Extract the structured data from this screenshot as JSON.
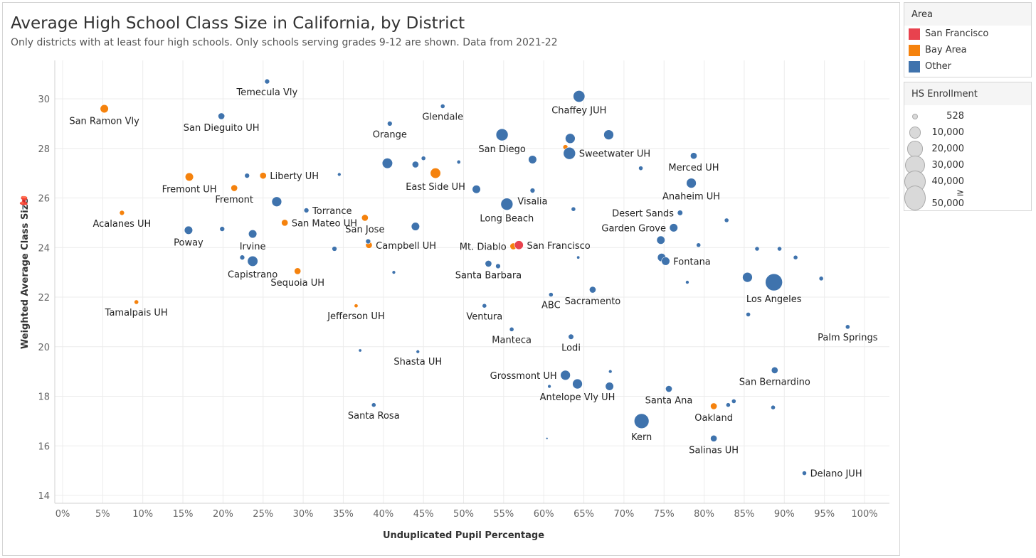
{
  "title": "Average High School Class Size in California, by District",
  "subtitle": "Only districts with at least four high schools. Only schools serving grades 9-12 are shown. Data from 2021-22",
  "legend_area": {
    "title": "Area",
    "items": [
      {
        "label": "San Francisco",
        "color": "#e8424e"
      },
      {
        "label": "Bay Area",
        "color": "#f5820d"
      },
      {
        "label": "Other",
        "color": "#3f73ad"
      }
    ]
  },
  "legend_size": {
    "title": "HS Enrollment",
    "items": [
      {
        "label": "528",
        "value": 528
      },
      {
        "label": "10,000",
        "value": 10000
      },
      {
        "label": "20,000",
        "value": 20000
      },
      {
        "label": "30,000",
        "value": 30000
      },
      {
        "label": "40,000",
        "value": 40000
      },
      {
        "label": "≥ 50,000",
        "value": 50000
      }
    ]
  },
  "chart_data": {
    "type": "scatter",
    "title": "Average High School Class Size in California, by District",
    "xlabel": "Unduplicated Pupil Percentage",
    "ylabel": "Weighted Average Class Size",
    "xlim": [
      -1,
      102
    ],
    "ylim": [
      13.4,
      31.6
    ],
    "xticks": [
      "0%",
      "5%",
      "10%",
      "15%",
      "20%",
      "25%",
      "30%",
      "35%",
      "40%",
      "45%",
      "50%",
      "55%",
      "60%",
      "65%",
      "70%",
      "75%",
      "80%",
      "85%",
      "90%",
      "95%",
      "100%"
    ],
    "yticks": [
      "14",
      "16",
      "18",
      "20",
      "22",
      "24",
      "26",
      "28",
      "30"
    ],
    "grid": true,
    "legend": "right",
    "points": [
      {
        "x": 5.2,
        "y": 29.6,
        "area": "Bay Area",
        "enroll": 14000,
        "label": "San Ramon Vly",
        "pos": "below"
      },
      {
        "x": 7.4,
        "y": 25.4,
        "area": "Bay Area",
        "enroll": 5000,
        "label": "Acalanes UH",
        "pos": "below"
      },
      {
        "x": 9.2,
        "y": 21.8,
        "area": "Bay Area",
        "enroll": 4000,
        "label": "Tamalpais UH",
        "pos": "below"
      },
      {
        "x": 15.8,
        "y": 26.85,
        "area": "Bay Area",
        "enroll": 14000,
        "label": "Fremont UH",
        "pos": "below"
      },
      {
        "x": 21.4,
        "y": 26.4,
        "area": "Bay Area",
        "enroll": 9000,
        "label": "Fremont",
        "pos": "below"
      },
      {
        "x": 25.0,
        "y": 26.9,
        "area": "Bay Area",
        "enroll": 9000,
        "label": "Liberty UH",
        "pos": "right"
      },
      {
        "x": 27.7,
        "y": 25.0,
        "area": "Bay Area",
        "enroll": 9000,
        "label": "San Mateo UH",
        "pos": "right"
      },
      {
        "x": 29.3,
        "y": 23.05,
        "area": "Bay Area",
        "enroll": 9000,
        "label": "Sequoia UH",
        "pos": "below"
      },
      {
        "x": 37.7,
        "y": 25.2,
        "area": "Bay Area",
        "enroll": 9000,
        "label": "San Jose",
        "pos": "below"
      },
      {
        "x": 38.2,
        "y": 24.1,
        "area": "Bay Area",
        "enroll": 9000,
        "label": "Campbell UH",
        "pos": "right"
      },
      {
        "x": 36.6,
        "y": 21.65,
        "area": "Bay Area",
        "enroll": 3000,
        "label": "Jefferson UH",
        "pos": "below"
      },
      {
        "x": 46.5,
        "y": 27.0,
        "area": "Bay Area",
        "enroll": 22000,
        "label": "East Side UH",
        "pos": "below"
      },
      {
        "x": 56.2,
        "y": 24.05,
        "area": "Bay Area",
        "enroll": 9000,
        "label": "Mt. Diablo",
        "pos": "left"
      },
      {
        "x": 62.7,
        "y": 28.05,
        "area": "Bay Area",
        "enroll": 5000,
        "label": "",
        "pos": ""
      },
      {
        "x": 81.2,
        "y": 17.6,
        "area": "Bay Area",
        "enroll": 9000,
        "label": "Oakland",
        "pos": "below"
      },
      {
        "x": 56.9,
        "y": 24.1,
        "area": "San Francisco",
        "enroll": 16000,
        "label": "San Francisco",
        "pos": "right"
      },
      {
        "x": 25.5,
        "y": 30.7,
        "area": "Other",
        "enroll": 5000,
        "label": "Temecula Vly",
        "pos": "below"
      },
      {
        "x": 19.8,
        "y": 29.3,
        "area": "Other",
        "enroll": 9000,
        "label": "San Dieguito UH",
        "pos": "below"
      },
      {
        "x": 23.0,
        "y": 26.9,
        "area": "Other",
        "enroll": 5000,
        "label": "",
        "pos": ""
      },
      {
        "x": 34.5,
        "y": 26.95,
        "area": "Other",
        "enroll": 2500,
        "label": "",
        "pos": ""
      },
      {
        "x": 26.7,
        "y": 25.85,
        "area": "Other",
        "enroll": 20000,
        "label": "",
        "pos": ""
      },
      {
        "x": 30.4,
        "y": 25.5,
        "area": "Other",
        "enroll": 5000,
        "label": "Torrance",
        "pos": "right"
      },
      {
        "x": 15.7,
        "y": 24.7,
        "area": "Other",
        "enroll": 14000,
        "label": "Poway",
        "pos": "below"
      },
      {
        "x": 19.9,
        "y": 24.75,
        "area": "Other",
        "enroll": 5000,
        "label": "",
        "pos": ""
      },
      {
        "x": 23.7,
        "y": 24.55,
        "area": "Other",
        "enroll": 14000,
        "label": "Irvine",
        "pos": "below"
      },
      {
        "x": 22.4,
        "y": 23.6,
        "area": "Other",
        "enroll": 5000,
        "label": "",
        "pos": ""
      },
      {
        "x": 23.7,
        "y": 23.45,
        "area": "Other",
        "enroll": 22000,
        "label": "Capistrano",
        "pos": "below"
      },
      {
        "x": 33.9,
        "y": 23.95,
        "area": "Other",
        "enroll": 5000,
        "label": "",
        "pos": ""
      },
      {
        "x": 38.1,
        "y": 24.25,
        "area": "Other",
        "enroll": 5000,
        "label": "",
        "pos": ""
      },
      {
        "x": 41.3,
        "y": 23.0,
        "area": "Other",
        "enroll": 2500,
        "label": "",
        "pos": ""
      },
      {
        "x": 37.1,
        "y": 19.85,
        "area": "Other",
        "enroll": 2000,
        "label": "",
        "pos": ""
      },
      {
        "x": 44.3,
        "y": 19.8,
        "area": "Other",
        "enroll": 2500,
        "label": "Shasta UH",
        "pos": "below"
      },
      {
        "x": 38.8,
        "y": 17.65,
        "area": "Other",
        "enroll": 4000,
        "label": "Santa Rosa",
        "pos": "below"
      },
      {
        "x": 40.8,
        "y": 29.0,
        "area": "Other",
        "enroll": 5000,
        "label": "Orange",
        "pos": "below"
      },
      {
        "x": 47.4,
        "y": 29.7,
        "area": "Other",
        "enroll": 4000,
        "label": "Glendale",
        "pos": "below"
      },
      {
        "x": 40.5,
        "y": 27.4,
        "area": "Other",
        "enroll": 22000,
        "label": "",
        "pos": ""
      },
      {
        "x": 44.0,
        "y": 27.35,
        "area": "Other",
        "enroll": 9000,
        "label": "",
        "pos": ""
      },
      {
        "x": 45.0,
        "y": 27.6,
        "area": "Other",
        "enroll": 4000,
        "label": "",
        "pos": ""
      },
      {
        "x": 49.4,
        "y": 27.45,
        "area": "Other",
        "enroll": 3000,
        "label": "",
        "pos": ""
      },
      {
        "x": 44.0,
        "y": 24.85,
        "area": "Other",
        "enroll": 14000,
        "label": "",
        "pos": ""
      },
      {
        "x": 51.6,
        "y": 26.35,
        "area": "Other",
        "enroll": 14000,
        "label": "",
        "pos": ""
      },
      {
        "x": 54.8,
        "y": 28.55,
        "area": "Other",
        "enroll": 30000,
        "label": "San Diego",
        "pos": "below"
      },
      {
        "x": 58.6,
        "y": 27.55,
        "area": "Other",
        "enroll": 14000,
        "label": "",
        "pos": ""
      },
      {
        "x": 58.6,
        "y": 26.3,
        "area": "Other",
        "enroll": 5000,
        "label": "Visalia",
        "pos": "below"
      },
      {
        "x": 55.4,
        "y": 25.75,
        "area": "Other",
        "enroll": 30000,
        "label": "Long Beach",
        "pos": "below"
      },
      {
        "x": 53.1,
        "y": 23.35,
        "area": "Other",
        "enroll": 9000,
        "label": "Santa Barbara",
        "pos": "below"
      },
      {
        "x": 54.3,
        "y": 23.25,
        "area": "Other",
        "enroll": 5000,
        "label": "",
        "pos": ""
      },
      {
        "x": 63.7,
        "y": 25.55,
        "area": "Other",
        "enroll": 4000,
        "label": "",
        "pos": ""
      },
      {
        "x": 64.3,
        "y": 23.6,
        "area": "Other",
        "enroll": 2000,
        "label": "",
        "pos": ""
      },
      {
        "x": 60.9,
        "y": 22.1,
        "area": "Other",
        "enroll": 4000,
        "label": "ABC",
        "pos": "below"
      },
      {
        "x": 66.1,
        "y": 22.3,
        "area": "Other",
        "enroll": 9000,
        "label": "Sacramento",
        "pos": "below"
      },
      {
        "x": 52.6,
        "y": 21.65,
        "area": "Other",
        "enroll": 4000,
        "label": "Ventura",
        "pos": "below"
      },
      {
        "x": 56.0,
        "y": 20.7,
        "area": "Other",
        "enroll": 4000,
        "label": "Manteca",
        "pos": "below"
      },
      {
        "x": 63.4,
        "y": 20.4,
        "area": "Other",
        "enroll": 6000,
        "label": "Lodi",
        "pos": "below"
      },
      {
        "x": 64.4,
        "y": 30.1,
        "area": "Other",
        "enroll": 28000,
        "label": "Chaffey JUH",
        "pos": "below"
      },
      {
        "x": 63.3,
        "y": 28.4,
        "area": "Other",
        "enroll": 20000,
        "label": "",
        "pos": ""
      },
      {
        "x": 63.2,
        "y": 27.8,
        "area": "Other",
        "enroll": 30000,
        "label": "Sweetwater UH",
        "pos": "right"
      },
      {
        "x": 68.1,
        "y": 28.55,
        "area": "Other",
        "enroll": 20000,
        "label": "",
        "pos": ""
      },
      {
        "x": 72.1,
        "y": 27.2,
        "area": "Other",
        "enroll": 4000,
        "label": "",
        "pos": ""
      },
      {
        "x": 78.7,
        "y": 27.7,
        "area": "Other",
        "enroll": 9000,
        "label": "Merced UH",
        "pos": "below"
      },
      {
        "x": 78.4,
        "y": 26.6,
        "area": "Other",
        "enroll": 20000,
        "label": "Anaheim UH",
        "pos": "below"
      },
      {
        "x": 77.0,
        "y": 25.4,
        "area": "Other",
        "enroll": 6000,
        "label": "Desert Sands",
        "pos": "left"
      },
      {
        "x": 76.2,
        "y": 24.8,
        "area": "Other",
        "enroll": 14000,
        "label": "Garden Grove",
        "pos": "left"
      },
      {
        "x": 74.6,
        "y": 24.3,
        "area": "Other",
        "enroll": 14000,
        "label": "",
        "pos": ""
      },
      {
        "x": 74.7,
        "y": 23.6,
        "area": "Other",
        "enroll": 14000,
        "label": "",
        "pos": ""
      },
      {
        "x": 75.2,
        "y": 23.45,
        "area": "Other",
        "enroll": 14000,
        "label": "Fontana",
        "pos": "right"
      },
      {
        "x": 77.9,
        "y": 22.6,
        "area": "Other",
        "enroll": 2500,
        "label": "",
        "pos": ""
      },
      {
        "x": 79.3,
        "y": 24.1,
        "area": "Other",
        "enroll": 4000,
        "label": "",
        "pos": ""
      },
      {
        "x": 82.8,
        "y": 25.1,
        "area": "Other",
        "enroll": 4000,
        "label": "",
        "pos": ""
      },
      {
        "x": 86.6,
        "y": 23.95,
        "area": "Other",
        "enroll": 4000,
        "label": "",
        "pos": ""
      },
      {
        "x": 89.4,
        "y": 23.95,
        "area": "Other",
        "enroll": 4000,
        "label": "",
        "pos": ""
      },
      {
        "x": 91.4,
        "y": 23.6,
        "area": "Other",
        "enroll": 4000,
        "label": "",
        "pos": ""
      },
      {
        "x": 94.6,
        "y": 22.75,
        "area": "Other",
        "enroll": 4000,
        "label": "",
        "pos": ""
      },
      {
        "x": 88.7,
        "y": 22.6,
        "area": "Other",
        "enroll": 60000,
        "label": "Los Angeles",
        "pos": "below"
      },
      {
        "x": 85.4,
        "y": 22.8,
        "area": "Other",
        "enroll": 20000,
        "label": "",
        "pos": ""
      },
      {
        "x": 85.5,
        "y": 21.3,
        "area": "Other",
        "enroll": 4000,
        "label": "",
        "pos": ""
      },
      {
        "x": 97.9,
        "y": 20.8,
        "area": "Other",
        "enroll": 4000,
        "label": "Palm Springs",
        "pos": "below"
      },
      {
        "x": 88.8,
        "y": 19.05,
        "area": "Other",
        "enroll": 9000,
        "label": "San Bernardino",
        "pos": "below"
      },
      {
        "x": 88.6,
        "y": 17.55,
        "area": "Other",
        "enroll": 4000,
        "label": "",
        "pos": ""
      },
      {
        "x": 83.0,
        "y": 17.65,
        "area": "Other",
        "enroll": 4000,
        "label": "",
        "pos": ""
      },
      {
        "x": 83.7,
        "y": 17.8,
        "area": "Other",
        "enroll": 4000,
        "label": "",
        "pos": ""
      },
      {
        "x": 75.6,
        "y": 18.3,
        "area": "Other",
        "enroll": 9000,
        "label": "Santa Ana",
        "pos": "below"
      },
      {
        "x": 72.2,
        "y": 17.0,
        "area": "Other",
        "enroll": 45000,
        "label": "Kern",
        "pos": "below"
      },
      {
        "x": 81.2,
        "y": 16.3,
        "area": "Other",
        "enroll": 9000,
        "label": "Salinas UH",
        "pos": "below"
      },
      {
        "x": 92.5,
        "y": 14.9,
        "area": "Other",
        "enroll": 4000,
        "label": "Delano JUH",
        "pos": "right"
      },
      {
        "x": 60.4,
        "y": 16.3,
        "area": "Other",
        "enroll": 528,
        "label": "",
        "pos": ""
      },
      {
        "x": 62.7,
        "y": 18.85,
        "area": "Other",
        "enroll": 20000,
        "label": "Grossmont UH",
        "pos": "left"
      },
      {
        "x": 64.2,
        "y": 18.5,
        "area": "Other",
        "enroll": 20000,
        "label": "Antelope Vly UH",
        "pos": "below"
      },
      {
        "x": 68.2,
        "y": 18.4,
        "area": "Other",
        "enroll": 14000,
        "label": "",
        "pos": ""
      },
      {
        "x": 68.3,
        "y": 19.0,
        "area": "Other",
        "enroll": 2500,
        "label": "",
        "pos": ""
      },
      {
        "x": 60.7,
        "y": 18.4,
        "area": "Other",
        "enroll": 2500,
        "label": "",
        "pos": ""
      }
    ]
  }
}
